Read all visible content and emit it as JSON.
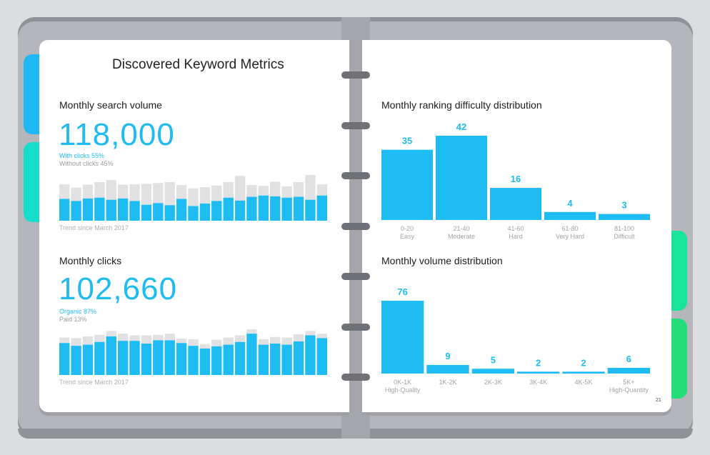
{
  "page_title": "Discovered Keyword Metrics",
  "search_volume": {
    "label": "Monthly search volume",
    "value": "118,000",
    "primary_note": "With clicks 55%",
    "secondary_note": "Without clicks 45%",
    "trend_note": "Trend since March 2017"
  },
  "clicks": {
    "label": "Monthly clicks",
    "value": "102,660",
    "primary_note": "Organic 87%",
    "secondary_note": "Paid 13%",
    "trend_note": "Trend since March 2017"
  },
  "difficulty": {
    "label": "Monthly ranking difficulty distribution"
  },
  "volume_dist": {
    "label": "Monthly volume distribution"
  },
  "page_number": "21",
  "colors": {
    "accent": "#1fbcf4",
    "muted_bar": "#e1e1e3",
    "tab_blue": "#1eb8f3",
    "tab_teal": "#16ddc9",
    "tab_green": "#18e49a",
    "tab_green2": "#22dd78"
  },
  "chart_data": [
    {
      "type": "bar",
      "title": "Monthly search volume",
      "series": [
        {
          "name": "With clicks",
          "values": [
            52,
            47,
            53,
            55,
            50,
            53,
            47,
            38,
            42,
            37,
            52,
            35,
            41,
            47,
            55,
            48,
            57,
            60,
            58,
            55,
            57,
            50,
            60
          ]
        },
        {
          "name": "Without clicks",
          "values": [
            35,
            32,
            33,
            37,
            47,
            33,
            40,
            50,
            48,
            55,
            33,
            42,
            39,
            37,
            37,
            59,
            28,
            23,
            35,
            27,
            35,
            59,
            27
          ]
        }
      ],
      "stacked": true
    },
    {
      "type": "bar",
      "title": "Monthly clicks",
      "series": [
        {
          "name": "Organic",
          "values": [
            58,
            53,
            55,
            60,
            70,
            62,
            62,
            57,
            63,
            63,
            58,
            53,
            48,
            52,
            55,
            60,
            75,
            55,
            57,
            55,
            61,
            72,
            67
          ]
        },
        {
          "name": "Paid",
          "values": [
            10,
            14,
            15,
            13,
            10,
            13,
            10,
            15,
            10,
            12,
            8,
            12,
            8,
            12,
            13,
            12,
            8,
            10,
            12,
            13,
            13,
            8,
            8
          ]
        }
      ],
      "stacked": true
    },
    {
      "type": "bar",
      "title": "Monthly ranking difficulty distribution",
      "categories": [
        "0-20",
        "21-40",
        "41-60",
        "61-80",
        "81-100"
      ],
      "sublabels": [
        "Easy",
        "Moderate",
        "Hard",
        "Very Hard",
        "Difficult"
      ],
      "values": [
        35,
        42,
        16,
        4,
        3
      ],
      "value_labels": [
        "35",
        "42",
        "16",
        "4",
        "3"
      ]
    },
    {
      "type": "bar",
      "title": "Monthly volume distribution",
      "categories": [
        "0K-1K",
        "1K-2K",
        "2K-3K",
        "3K-4K",
        "4K-5K",
        "5K+"
      ],
      "sublabels": [
        "High-Quality",
        "",
        "",
        "",
        "",
        "High-Quantity"
      ],
      "values": [
        76,
        9,
        5,
        2,
        2,
        6
      ],
      "value_labels": [
        "76",
        "9",
        "5",
        "2",
        "2",
        "6"
      ]
    }
  ]
}
